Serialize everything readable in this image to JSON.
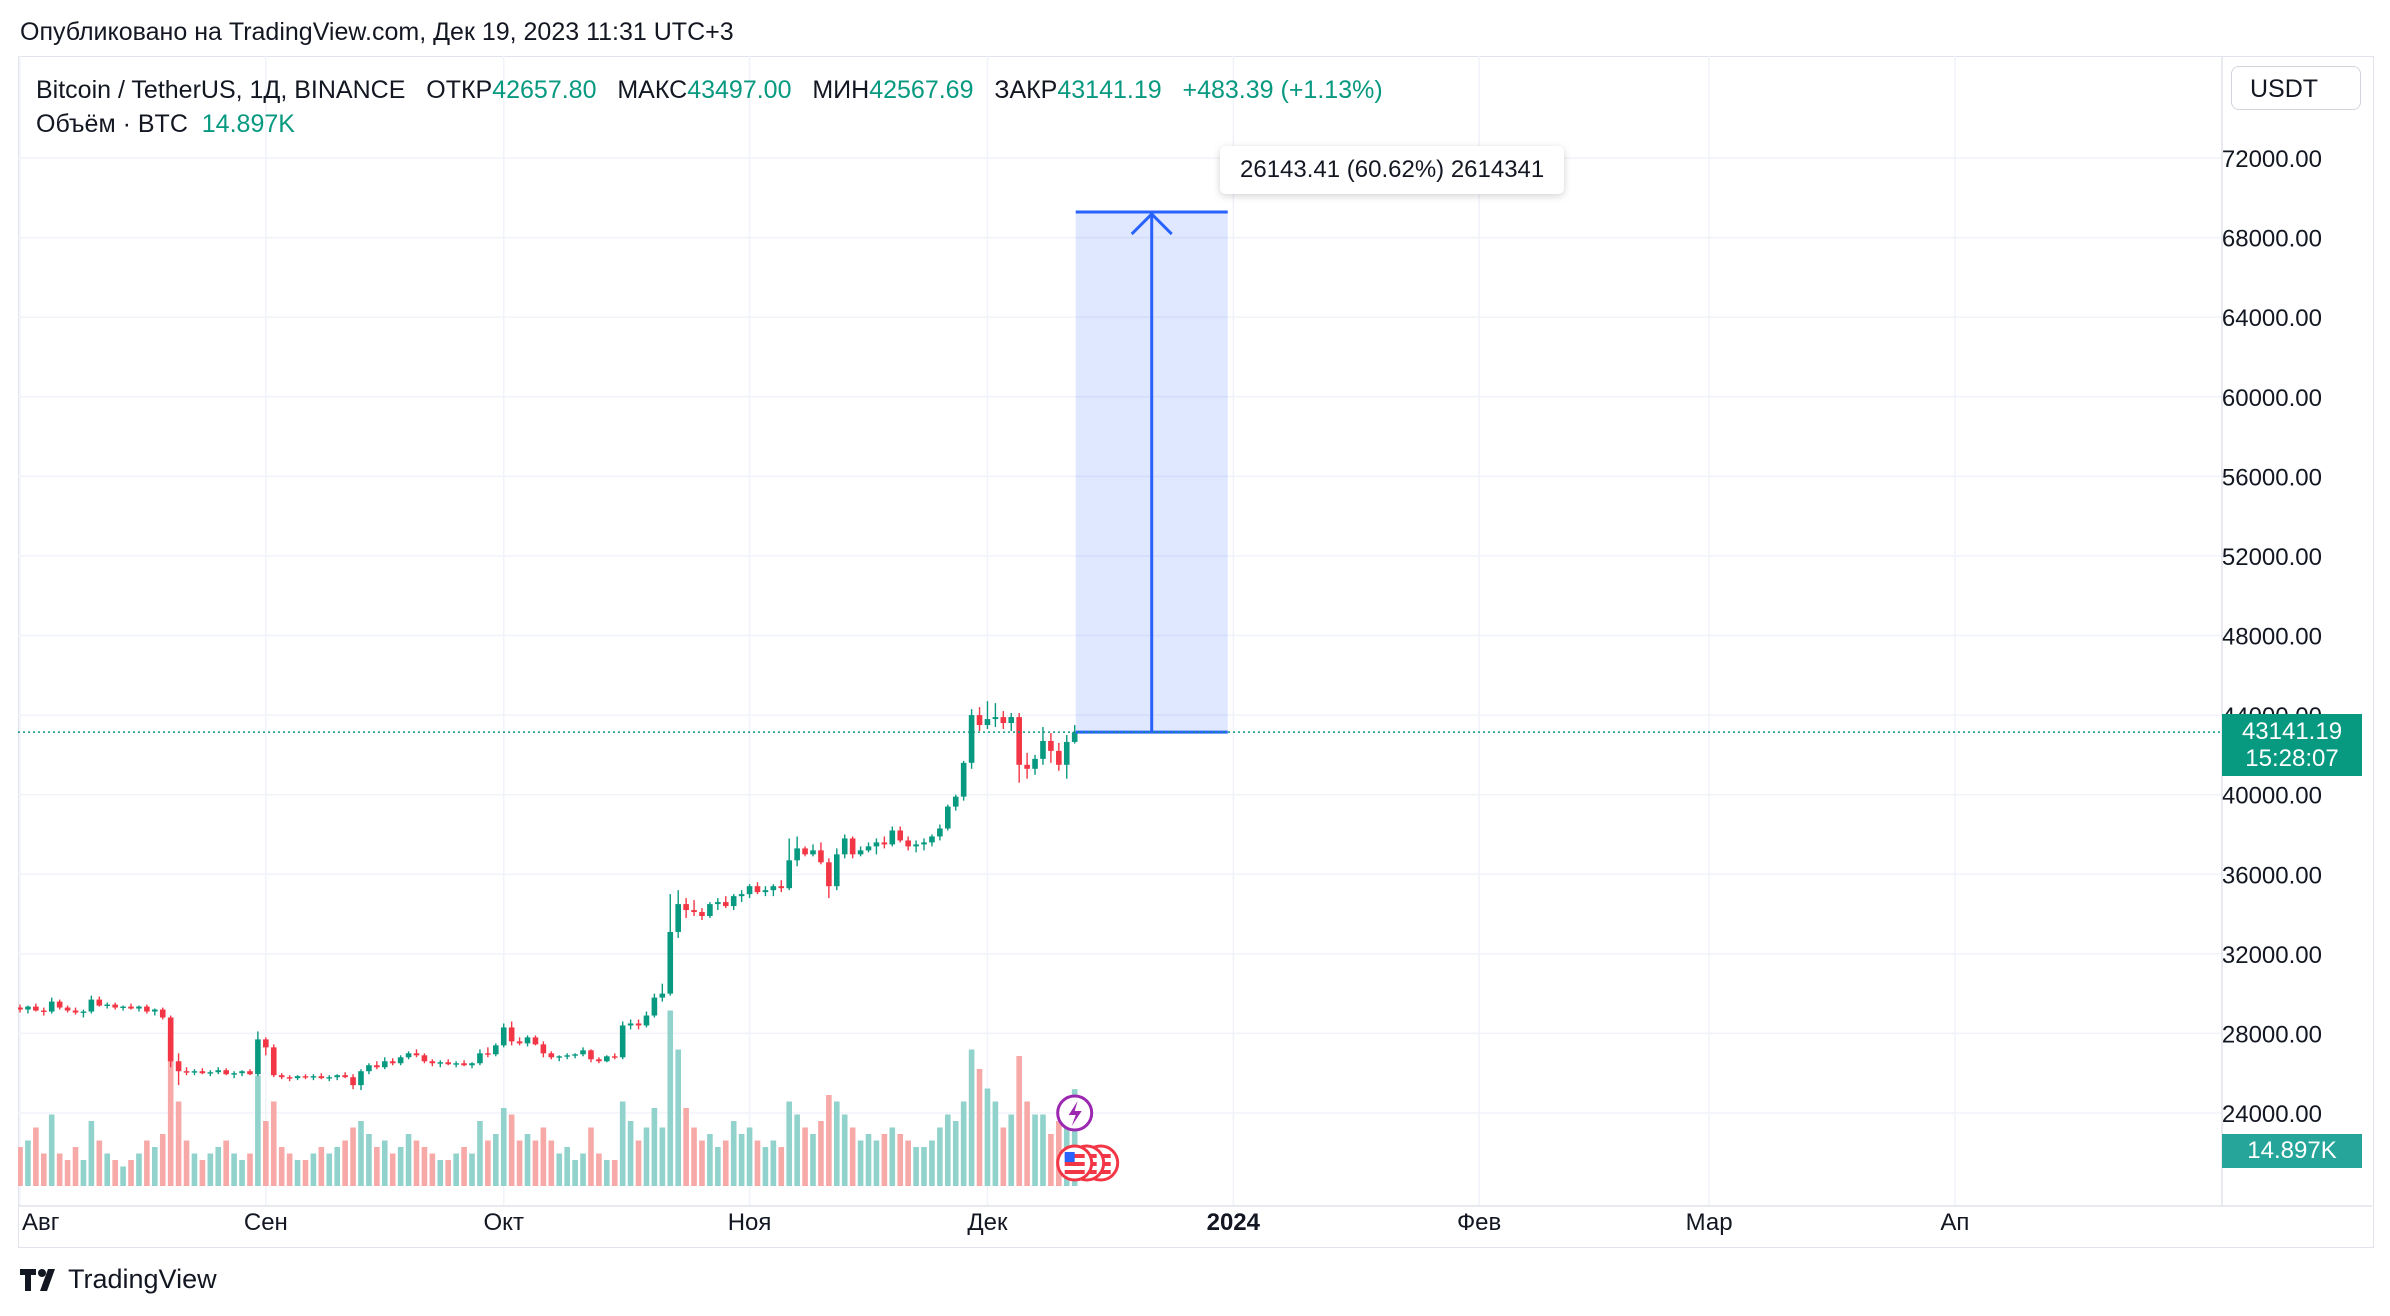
{
  "header": {
    "published": "Опубликовано на TradingView.com, Дек 19, 2023 11:31 UTC+3"
  },
  "legend": {
    "symbol": "Bitcoin / TetherUS, 1Д, BINANCE",
    "open_label": "ОТКР",
    "open": "42657.80",
    "high_label": "МАКС",
    "high": "43497.00",
    "low_label": "МИН",
    "low": "42567.69",
    "close_label": "ЗАКР",
    "close": "43141.19",
    "change": "+483.39 (+1.13%)",
    "volume_label": "Объём · BTC",
    "volume": "14.897K"
  },
  "toolbar": {
    "currency": "USDT"
  },
  "measure": {
    "label": "26143.41 (60.62%) 2614341",
    "target": 69284.6
  },
  "last_price": {
    "value": "43141.19",
    "countdown": "15:28:07"
  },
  "volume_tag": "14.897K",
  "branding": {
    "name": "TradingView"
  },
  "colors": {
    "up": "#089981",
    "down": "#f23645",
    "vol_up": "#92d2cc",
    "vol_down": "#f7a9a7",
    "measure": "#2962ff"
  },
  "chart_data": {
    "type": "candlestick",
    "y_ticks": [
      "24000.00",
      "28000.00",
      "32000.00",
      "36000.00",
      "40000.00",
      "44000.00",
      "48000.00",
      "52000.00",
      "56000.00",
      "60000.00",
      "64000.00",
      "68000.00",
      "72000.00"
    ],
    "x_ticks": [
      {
        "label": "Авг",
        "day": 0
      },
      {
        "label": "Сен",
        "day": 31
      },
      {
        "label": "Окт",
        "day": 61
      },
      {
        "label": "Ноя",
        "day": 92
      },
      {
        "label": "Дек",
        "day": 122
      },
      {
        "label": "2024",
        "day": 153
      },
      {
        "label": "Фев",
        "day": 184
      },
      {
        "label": "Мар",
        "day": 213
      },
      {
        "label": "Ап",
        "day": 244
      }
    ],
    "candles": [
      [
        29300,
        29450,
        29050,
        29200,
        6
      ],
      [
        29200,
        29400,
        29000,
        29350,
        7
      ],
      [
        29350,
        29500,
        29100,
        29150,
        9
      ],
      [
        29150,
        29300,
        28900,
        29100,
        5
      ],
      [
        29100,
        29800,
        29000,
        29600,
        11
      ],
      [
        29600,
        29700,
        29200,
        29300,
        5
      ],
      [
        29300,
        29400,
        29050,
        29150,
        4
      ],
      [
        29150,
        29300,
        28950,
        29050,
        6
      ],
      [
        29050,
        29200,
        28800,
        29100,
        4
      ],
      [
        29100,
        29900,
        29000,
        29700,
        10
      ],
      [
        29700,
        29850,
        29350,
        29400,
        7
      ],
      [
        29400,
        29550,
        29250,
        29450,
        5
      ],
      [
        29450,
        29550,
        29200,
        29300,
        4
      ],
      [
        29300,
        29400,
        29150,
        29350,
        3
      ],
      [
        29350,
        29500,
        29200,
        29250,
        4
      ],
      [
        29250,
        29400,
        29100,
        29350,
        5
      ],
      [
        29350,
        29450,
        29000,
        29100,
        7
      ],
      [
        29100,
        29250,
        28900,
        29200,
        6
      ],
      [
        29200,
        29300,
        28700,
        28800,
        8
      ],
      [
        28800,
        28900,
        26300,
        26600,
        23
      ],
      [
        26600,
        27000,
        25400,
        26100,
        13
      ],
      [
        26100,
        26300,
        25900,
        26050,
        7
      ],
      [
        26050,
        26200,
        25900,
        26100,
        5
      ],
      [
        26100,
        26250,
        25950,
        26000,
        4
      ],
      [
        26000,
        26150,
        25850,
        26050,
        5
      ],
      [
        26050,
        26300,
        25950,
        26150,
        6
      ],
      [
        26150,
        26250,
        25900,
        25950,
        7
      ],
      [
        25950,
        26100,
        25750,
        26000,
        5
      ],
      [
        26000,
        26150,
        25850,
        26100,
        4
      ],
      [
        26100,
        26200,
        25900,
        25950,
        5
      ],
      [
        25950,
        28100,
        25850,
        27700,
        17
      ],
      [
        27700,
        27800,
        26900,
        27300,
        10
      ],
      [
        27300,
        27450,
        25800,
        25900,
        13
      ],
      [
        25900,
        26000,
        25700,
        25800,
        6
      ],
      [
        25800,
        25900,
        25600,
        25750,
        5
      ],
      [
        25750,
        25900,
        25650,
        25850,
        4
      ],
      [
        25850,
        25950,
        25700,
        25800,
        4
      ],
      [
        25800,
        25950,
        25650,
        25850,
        5
      ],
      [
        25850,
        26000,
        25700,
        25750,
        6
      ],
      [
        25750,
        25900,
        25600,
        25800,
        5
      ],
      [
        25800,
        25950,
        25650,
        25900,
        6
      ],
      [
        25900,
        26050,
        25750,
        25800,
        7
      ],
      [
        25800,
        25950,
        25200,
        25400,
        9
      ],
      [
        25400,
        26200,
        25150,
        26100,
        10
      ],
      [
        26100,
        26500,
        25950,
        26400,
        8
      ],
      [
        26400,
        26600,
        26200,
        26300,
        6
      ],
      [
        26300,
        26800,
        26200,
        26600,
        7
      ],
      [
        26600,
        26750,
        26400,
        26500,
        5
      ],
      [
        26500,
        26900,
        26400,
        26800,
        6
      ],
      [
        26800,
        27100,
        26700,
        27000,
        8
      ],
      [
        27000,
        27200,
        26800,
        26900,
        7
      ],
      [
        26900,
        27000,
        26500,
        26600,
        6
      ],
      [
        26600,
        26700,
        26350,
        26500,
        5
      ],
      [
        26500,
        26650,
        26300,
        26550,
        4
      ],
      [
        26550,
        26700,
        26400,
        26450,
        4
      ],
      [
        26450,
        26600,
        26300,
        26500,
        5
      ],
      [
        26500,
        26650,
        26350,
        26400,
        6
      ],
      [
        26400,
        26550,
        26250,
        26500,
        5
      ],
      [
        26500,
        27200,
        26400,
        27000,
        10
      ],
      [
        27000,
        27300,
        26800,
        26950,
        7
      ],
      [
        26950,
        27500,
        26850,
        27400,
        8
      ],
      [
        27400,
        28500,
        27300,
        28300,
        12
      ],
      [
        28300,
        28600,
        27400,
        27600,
        11
      ],
      [
        27600,
        27800,
        27400,
        27500,
        7
      ],
      [
        27500,
        27900,
        27350,
        27800,
        8
      ],
      [
        27800,
        27900,
        27400,
        27450,
        7
      ],
      [
        27450,
        27600,
        26800,
        27000,
        9
      ],
      [
        27000,
        27100,
        26700,
        26800,
        7
      ],
      [
        26800,
        26900,
        26600,
        26850,
        5
      ],
      [
        26850,
        27000,
        26700,
        26900,
        6
      ],
      [
        26900,
        27000,
        26750,
        26950,
        4
      ],
      [
        26950,
        27300,
        26850,
        27150,
        5
      ],
      [
        27150,
        27200,
        26550,
        26700,
        9
      ],
      [
        26700,
        26800,
        26500,
        26600,
        5
      ],
      [
        26600,
        26900,
        26550,
        26850,
        4
      ],
      [
        26850,
        27000,
        26700,
        26800,
        4
      ],
      [
        26800,
        28600,
        26700,
        28400,
        13
      ],
      [
        28400,
        28700,
        28200,
        28500,
        10
      ],
      [
        28500,
        28700,
        28200,
        28400,
        7
      ],
      [
        28400,
        29100,
        28300,
        28900,
        9
      ],
      [
        28900,
        30000,
        28800,
        29800,
        12
      ],
      [
        29800,
        30500,
        29600,
        30000,
        9
      ],
      [
        30000,
        35000,
        29900,
        33100,
        27
      ],
      [
        33100,
        35200,
        32800,
        34500,
        21
      ],
      [
        34500,
        34800,
        33800,
        34200,
        12
      ],
      [
        34200,
        34700,
        33900,
        34100,
        9
      ],
      [
        34100,
        34300,
        33700,
        33900,
        7
      ],
      [
        33900,
        34600,
        33800,
        34500,
        8
      ],
      [
        34500,
        34800,
        34200,
        34600,
        6
      ],
      [
        34600,
        34900,
        34300,
        34400,
        7
      ],
      [
        34400,
        35000,
        34200,
        34900,
        10
      ],
      [
        34900,
        35200,
        34600,
        35000,
        8
      ],
      [
        35000,
        35500,
        34800,
        35400,
        9
      ],
      [
        35400,
        35600,
        35000,
        35100,
        7
      ],
      [
        35100,
        35400,
        34900,
        35200,
        6
      ],
      [
        35200,
        35500,
        34900,
        35400,
        7
      ],
      [
        35400,
        35700,
        35100,
        35300,
        6
      ],
      [
        35300,
        37800,
        35200,
        36700,
        13
      ],
      [
        36700,
        37900,
        36400,
        37300,
        11
      ],
      [
        37300,
        37400,
        36900,
        37000,
        9
      ],
      [
        37000,
        37500,
        36900,
        37200,
        8
      ],
      [
        37200,
        37600,
        36500,
        36600,
        10
      ],
      [
        36600,
        36800,
        34800,
        35400,
        14
      ],
      [
        35400,
        37300,
        35200,
        37000,
        13
      ],
      [
        37000,
        38000,
        36800,
        37800,
        11
      ],
      [
        37800,
        37900,
        36800,
        37000,
        9
      ],
      [
        37000,
        37400,
        36900,
        37200,
        7
      ],
      [
        37200,
        37600,
        37100,
        37400,
        8
      ],
      [
        37400,
        37800,
        37000,
        37600,
        7
      ],
      [
        37600,
        37900,
        37300,
        37500,
        8
      ],
      [
        37500,
        38400,
        37400,
        38200,
        9
      ],
      [
        38200,
        38400,
        37600,
        37700,
        8
      ],
      [
        37700,
        37900,
        37200,
        37400,
        7
      ],
      [
        37400,
        37700,
        37100,
        37500,
        6
      ],
      [
        37500,
        37800,
        37200,
        37600,
        6
      ],
      [
        37600,
        38000,
        37400,
        37900,
        7
      ],
      [
        37900,
        38500,
        37700,
        38300,
        9
      ],
      [
        38300,
        39500,
        38200,
        39400,
        11
      ],
      [
        39400,
        40000,
        39200,
        39900,
        10
      ],
      [
        39900,
        41700,
        39700,
        41600,
        13
      ],
      [
        41600,
        44300,
        41300,
        44000,
        21
      ],
      [
        44000,
        44400,
        43200,
        43500,
        18
      ],
      [
        43500,
        44700,
        43300,
        43800,
        15
      ],
      [
        43800,
        44600,
        43400,
        43900,
        13
      ],
      [
        43900,
        44200,
        43300,
        43600,
        9
      ],
      [
        43600,
        44100,
        43200,
        43900,
        11
      ],
      [
        43900,
        44100,
        40600,
        41500,
        20
      ],
      [
        41500,
        42100,
        40800,
        41300,
        13
      ],
      [
        41300,
        42000,
        41000,
        41800,
        11
      ],
      [
        41800,
        43400,
        41500,
        42700,
        11
      ],
      [
        42700,
        43100,
        41600,
        42200,
        8
      ],
      [
        42200,
        42600,
        41200,
        41500,
        10
      ],
      [
        41500,
        43000,
        40800,
        42650,
        10
      ],
      [
        42650,
        43497,
        42567,
        43141,
        14.897
      ]
    ],
    "volume_axis_max": 30
  }
}
